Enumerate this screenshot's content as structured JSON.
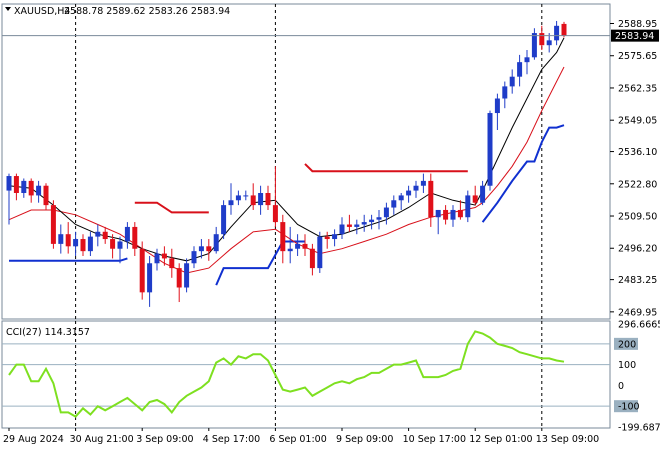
{
  "header": {
    "symbol": "XAUUSD,H4",
    "ohlc": "2588.78 2589.62 2583.26 2583.94"
  },
  "indicator": {
    "label": "CCI(27) 114.3157"
  },
  "colors": {
    "bull": "#1f3cc8",
    "bear": "#e0101a",
    "ma_fast": "#000000",
    "ma_slow": "#d8101a",
    "trail_up": "#1030d0",
    "trail_down": "#d8101a",
    "cci": "#7ee020",
    "grid": "#7a8a9a",
    "level": "#9ab0c0",
    "pricebox": "#000000"
  },
  "chart_data": [
    {
      "type": "candlestick",
      "title": "XAUUSD,H4",
      "ylim": [
        2467.0,
        2597.0
      ],
      "y_ticks": [
        "2588.95",
        "2575.65",
        "2562.35",
        "2549.05",
        "2536.10",
        "2522.80",
        "2509.50",
        "2496.20",
        "2483.25",
        "2469.95"
      ],
      "y_tick_values": [
        2588.95,
        2575.65,
        2562.35,
        2549.05,
        2536.1,
        2522.8,
        2509.5,
        2496.2,
        2483.25,
        2469.95
      ],
      "current_price": "2583.94",
      "current_value": 2583.94,
      "x_labels": [
        "29 Aug 2024",
        "30 Aug 21:00",
        "3 Sep 09:00",
        "4 Sep 17:00",
        "6 Sep 01:00",
        "9 Sep 09:00",
        "10 Sep 17:00",
        "12 Sep 01:00",
        "13 Sep 09:00"
      ],
      "x_label_bars": [
        0,
        9,
        18,
        27,
        36,
        45,
        54,
        63,
        72
      ],
      "session_separators": [
        9,
        36,
        72
      ],
      "candles": [
        [
          2520,
          2527,
          2506,
          2526
        ],
        [
          2526,
          2527,
          2516,
          2519
        ],
        [
          2519,
          2525,
          2517,
          2524
        ],
        [
          2524,
          2525,
          2515,
          2518
        ],
        [
          2518,
          2524,
          2515,
          2522
        ],
        [
          2522,
          2523,
          2512,
          2514
        ],
        [
          2514,
          2516,
          2496,
          2498
        ],
        [
          2498,
          2506,
          2494,
          2502
        ],
        [
          2502,
          2507,
          2494,
          2497
        ],
        [
          2497,
          2503,
          2493,
          2500
        ],
        [
          2500,
          2502,
          2493,
          2495
        ],
        [
          2495,
          2503,
          2493,
          2501
        ],
        [
          2501,
          2506,
          2497,
          2503
        ],
        [
          2503,
          2505,
          2498,
          2500
        ],
        [
          2500,
          2502,
          2492,
          2496
        ],
        [
          2496,
          2501,
          2490,
          2499
        ],
        [
          2499,
          2507,
          2496,
          2505
        ],
        [
          2505,
          2507,
          2493,
          2496
        ],
        [
          2496,
          2499,
          2475,
          2478
        ],
        [
          2478,
          2493,
          2472,
          2490
        ],
        [
          2490,
          2496,
          2487,
          2494
        ],
        [
          2494,
          2497,
          2489,
          2492
        ],
        [
          2492,
          2496,
          2484,
          2488
        ],
        [
          2488,
          2490,
          2474,
          2480
        ],
        [
          2480,
          2492,
          2478,
          2490
        ],
        [
          2490,
          2497,
          2488,
          2495
        ],
        [
          2495,
          2500,
          2492,
          2497
        ],
        [
          2497,
          2500,
          2491,
          2495
        ],
        [
          2495,
          2505,
          2494,
          2502
        ],
        [
          2502,
          2516,
          2500,
          2514
        ],
        [
          2514,
          2523,
          2510,
          2516
        ],
        [
          2516,
          2520,
          2514,
          2518
        ],
        [
          2518,
          2520,
          2516,
          2518
        ],
        [
          2518,
          2523,
          2512,
          2514
        ],
        [
          2514,
          2522,
          2510,
          2519
        ],
        [
          2519,
          2522,
          2512,
          2514
        ],
        [
          2514,
          2530,
          2505,
          2507
        ],
        [
          2507,
          2510,
          2490,
          2495
        ],
        [
          2495,
          2505,
          2490,
          2496
        ],
        [
          2496,
          2502,
          2493,
          2498
        ],
        [
          2498,
          2502,
          2493,
          2496
        ],
        [
          2496,
          2498,
          2485,
          2488
        ],
        [
          2488,
          2503,
          2486,
          2501
        ],
        [
          2501,
          2503,
          2496,
          2500
        ],
        [
          2500,
          2504,
          2497,
          2502
        ],
        [
          2502,
          2509,
          2500,
          2506
        ],
        [
          2506,
          2510,
          2503,
          2505
        ],
        [
          2505,
          2508,
          2502,
          2506
        ],
        [
          2506,
          2510,
          2503,
          2507
        ],
        [
          2507,
          2510,
          2504,
          2508
        ],
        [
          2508,
          2512,
          2504,
          2509
        ],
        [
          2509,
          2515,
          2506,
          2513
        ],
        [
          2513,
          2518,
          2510,
          2516
        ],
        [
          2516,
          2519,
          2512,
          2518
        ],
        [
          2518,
          2522,
          2515,
          2520
        ],
        [
          2520,
          2524,
          2517,
          2522
        ],
        [
          2522,
          2527,
          2519,
          2524
        ],
        [
          2524,
          2527,
          2505,
          2509
        ],
        [
          2509,
          2512,
          2502,
          2512
        ],
        [
          2512,
          2514,
          2506,
          2508
        ],
        [
          2508,
          2514,
          2505,
          2512
        ],
        [
          2512,
          2516,
          2508,
          2509
        ],
        [
          2509,
          2520,
          2507,
          2518
        ],
        [
          2518,
          2522,
          2514,
          2515
        ],
        [
          2515,
          2524,
          2514,
          2522
        ],
        [
          2522,
          2553,
          2520,
          2552
        ],
        [
          2552,
          2560,
          2545,
          2558
        ],
        [
          2558,
          2565,
          2554,
          2563
        ],
        [
          2563,
          2570,
          2560,
          2567
        ],
        [
          2567,
          2576,
          2563,
          2573
        ],
        [
          2573,
          2578,
          2568,
          2575
        ],
        [
          2575,
          2587,
          2574,
          2585
        ],
        [
          2585,
          2588,
          2578,
          2580
        ],
        [
          2580,
          2585,
          2577,
          2582
        ],
        [
          2582,
          2590,
          2580,
          2588
        ],
        [
          2588.78,
          2589.62,
          2583.26,
          2583.94
        ]
      ],
      "ma_fast": [
        [
          0,
          2522
        ],
        [
          3,
          2521
        ],
        [
          6,
          2514
        ],
        [
          9,
          2506
        ],
        [
          12,
          2502
        ],
        [
          15,
          2500
        ],
        [
          18,
          2496
        ],
        [
          21,
          2493
        ],
        [
          24,
          2491
        ],
        [
          27,
          2494
        ],
        [
          30,
          2505
        ],
        [
          33,
          2515
        ],
        [
          36,
          2516
        ],
        [
          39,
          2506
        ],
        [
          42,
          2501
        ],
        [
          45,
          2502
        ],
        [
          48,
          2505
        ],
        [
          51,
          2508
        ],
        [
          54,
          2513
        ],
        [
          57,
          2519
        ],
        [
          60,
          2516
        ],
        [
          63,
          2514
        ],
        [
          64,
          2520
        ],
        [
          66,
          2533
        ],
        [
          68,
          2546
        ],
        [
          70,
          2558
        ],
        [
          72,
          2570
        ],
        [
          74,
          2577
        ],
        [
          75,
          2583
        ]
      ],
      "ma_slow": [
        [
          0,
          2508
        ],
        [
          3,
          2512
        ],
        [
          6,
          2512
        ],
        [
          9,
          2510
        ],
        [
          12,
          2506
        ],
        [
          15,
          2502
        ],
        [
          18,
          2496
        ],
        [
          21,
          2490
        ],
        [
          24,
          2486
        ],
        [
          27,
          2488
        ],
        [
          30,
          2496
        ],
        [
          33,
          2503
        ],
        [
          36,
          2504
        ],
        [
          39,
          2498
        ],
        [
          42,
          2494
        ],
        [
          45,
          2496
        ],
        [
          48,
          2499
        ],
        [
          51,
          2502
        ],
        [
          54,
          2506
        ],
        [
          57,
          2509
        ],
        [
          60,
          2511
        ],
        [
          63,
          2513
        ],
        [
          64,
          2515
        ],
        [
          66,
          2522
        ],
        [
          68,
          2530
        ],
        [
          70,
          2540
        ],
        [
          72,
          2553
        ],
        [
          74,
          2565
        ],
        [
          75,
          2571
        ]
      ],
      "trail_up": [
        [
          [
            0,
            2491
          ],
          [
            15,
            2491
          ],
          [
            16,
            2492
          ]
        ],
        [
          [
            28,
            2481
          ],
          [
            29,
            2488
          ],
          [
            35,
            2488
          ],
          [
            37,
            2499
          ],
          [
            40,
            2499
          ]
        ],
        [
          [
            64,
            2507
          ],
          [
            66,
            2515
          ],
          [
            68,
            2524
          ],
          [
            70,
            2532
          ],
          [
            71,
            2532
          ],
          [
            72,
            2540
          ],
          [
            73,
            2546
          ],
          [
            74,
            2546
          ],
          [
            75,
            2547
          ]
        ]
      ],
      "trail_down": [
        [
          [
            17,
            2515
          ],
          [
            20,
            2515
          ],
          [
            22,
            2511
          ],
          [
            27,
            2511
          ]
        ],
        [
          [
            40,
            2531
          ],
          [
            41,
            2528
          ],
          [
            62,
            2528
          ]
        ]
      ]
    },
    {
      "type": "line",
      "title": "CCI(27) 114.3157",
      "ylim": [
        -205,
        310
      ],
      "y_ticks": [
        "296.6665",
        "200",
        "100",
        "0",
        "-100",
        "-199.6877"
      ],
      "y_tick_values": [
        296.6665,
        200,
        100,
        0,
        -100,
        -199.6877
      ],
      "levels": [
        200,
        100,
        -100
      ],
      "series": [
        {
          "values": [
            [
              0,
              50
            ],
            [
              1,
              100
            ],
            [
              2,
              100
            ],
            [
              3,
              20
            ],
            [
              4,
              20
            ],
            [
              5,
              80
            ],
            [
              6,
              10
            ],
            [
              7,
              -130
            ],
            [
              8,
              -130
            ],
            [
              9,
              -150
            ],
            [
              10,
              -110
            ],
            [
              11,
              -140
            ],
            [
              12,
              -100
            ],
            [
              13,
              -120
            ],
            [
              14,
              -100
            ],
            [
              15,
              -80
            ],
            [
              16,
              -60
            ],
            [
              17,
              -90
            ],
            [
              18,
              -120
            ],
            [
              19,
              -80
            ],
            [
              20,
              -70
            ],
            [
              21,
              -90
            ],
            [
              22,
              -130
            ],
            [
              23,
              -80
            ],
            [
              24,
              -50
            ],
            [
              25,
              -30
            ],
            [
              26,
              -10
            ],
            [
              27,
              20
            ],
            [
              28,
              110
            ],
            [
              29,
              130
            ],
            [
              30,
              100
            ],
            [
              31,
              140
            ],
            [
              32,
              130
            ],
            [
              33,
              150
            ],
            [
              34,
              150
            ],
            [
              35,
              120
            ],
            [
              36,
              50
            ],
            [
              37,
              -20
            ],
            [
              38,
              -30
            ],
            [
              39,
              -20
            ],
            [
              40,
              -10
            ],
            [
              41,
              -50
            ],
            [
              42,
              -30
            ],
            [
              43,
              -10
            ],
            [
              44,
              10
            ],
            [
              45,
              20
            ],
            [
              46,
              10
            ],
            [
              47,
              30
            ],
            [
              48,
              40
            ],
            [
              49,
              60
            ],
            [
              50,
              60
            ],
            [
              51,
              80
            ],
            [
              52,
              100
            ],
            [
              53,
              100
            ],
            [
              54,
              110
            ],
            [
              55,
              120
            ],
            [
              56,
              40
            ],
            [
              57,
              40
            ],
            [
              58,
              40
            ],
            [
              59,
              50
            ],
            [
              60,
              70
            ],
            [
              61,
              80
            ],
            [
              62,
              200
            ],
            [
              63,
              260
            ],
            [
              64,
              250
            ],
            [
              65,
              230
            ],
            [
              66,
              200
            ],
            [
              67,
              190
            ],
            [
              68,
              180
            ],
            [
              69,
              160
            ],
            [
              70,
              150
            ],
            [
              71,
              140
            ],
            [
              72,
              130
            ],
            [
              73,
              130
            ],
            [
              74,
              120
            ],
            [
              75,
              114.3157
            ]
          ]
        }
      ]
    }
  ]
}
